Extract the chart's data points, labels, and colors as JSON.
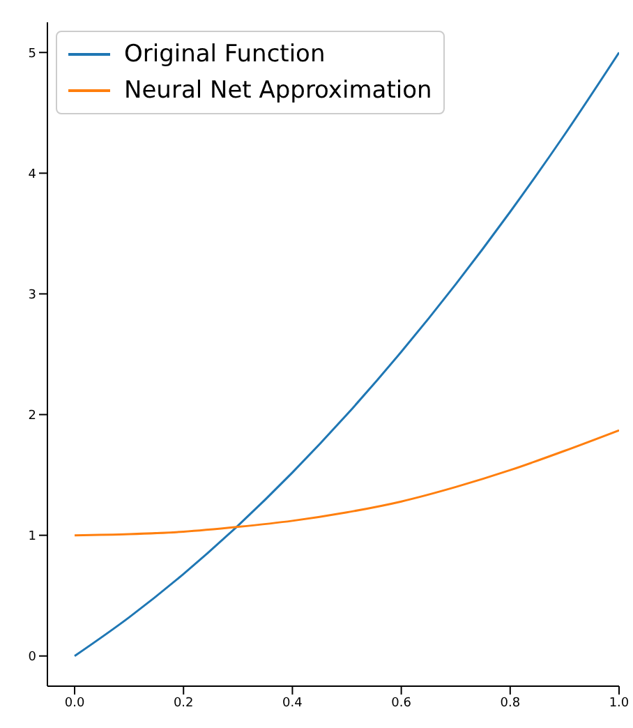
{
  "chart_data": {
    "type": "line",
    "x": [
      0,
      0.1,
      0.2,
      0.3,
      0.4,
      0.5,
      0.6,
      0.7,
      0.8,
      0.9,
      1.0
    ],
    "series": [
      {
        "name": "Original Function",
        "color": "#1f77b4",
        "values": [
          0,
          0.32,
          0.68,
          1.08,
          1.52,
          2.0,
          2.52,
          3.08,
          3.68,
          4.32,
          5.0
        ]
      },
      {
        "name": "Neural Net Approximation",
        "color": "#ff7f0e",
        "values": [
          1.0,
          1.01,
          1.03,
          1.07,
          1.12,
          1.19,
          1.28,
          1.4,
          1.54,
          1.7,
          1.87
        ]
      }
    ],
    "xlim": [
      -0.05,
      1.0
    ],
    "xticks": [
      {
        "value": 0,
        "label": "0.0"
      },
      {
        "value": 0.2,
        "label": "0.2"
      },
      {
        "value": 0.4,
        "label": "0.4"
      },
      {
        "value": 0.6,
        "label": "0.6"
      },
      {
        "value": 0.8,
        "label": "0.8"
      },
      {
        "value": 1.0,
        "label": "1.0"
      }
    ],
    "ylim": [
      -0.25,
      5.25
    ],
    "yticks": [
      0,
      1,
      2,
      3,
      4,
      5
    ],
    "legend": "top left",
    "marker": "none",
    "line_style": "solid",
    "grid": false
  }
}
